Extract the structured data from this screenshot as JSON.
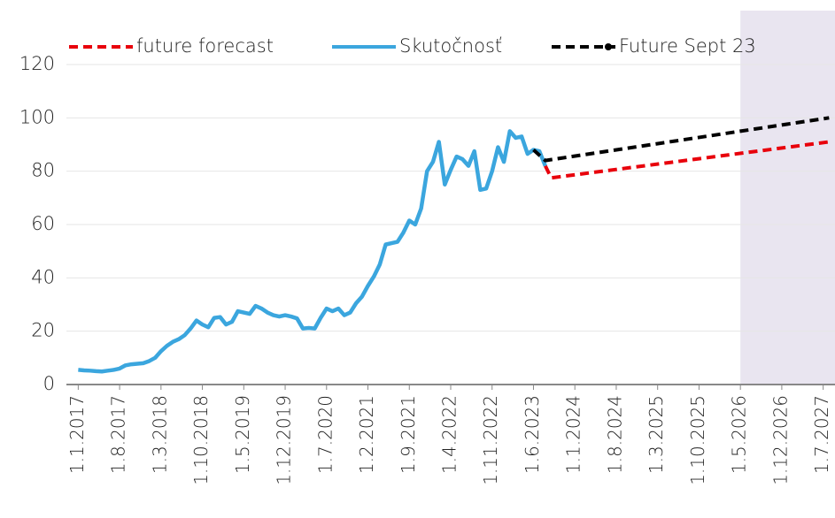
{
  "chart_data": {
    "type": "line",
    "ylim": [
      0,
      120
    ],
    "yticks": [
      0,
      20,
      40,
      60,
      80,
      100,
      120
    ],
    "grid": true,
    "xlim": [
      "2016-11-01",
      "2027-09-01"
    ],
    "xticks": [
      {
        "value": "2017-01-01",
        "label": "1.1.2017"
      },
      {
        "value": "2017-08-01",
        "label": "1.8.2017"
      },
      {
        "value": "2018-03-01",
        "label": "1.3.2018"
      },
      {
        "value": "2018-10-01",
        "label": "1.10.2018"
      },
      {
        "value": "2019-05-01",
        "label": "1.5.2019"
      },
      {
        "value": "2019-12-01",
        "label": "1.12.2019"
      },
      {
        "value": "2020-07-01",
        "label": "1.7.2020"
      },
      {
        "value": "2021-02-01",
        "label": "1.2.2021"
      },
      {
        "value": "2021-09-01",
        "label": "1.9.2021"
      },
      {
        "value": "2022-04-01",
        "label": "1.4.2022"
      },
      {
        "value": "2022-11-01",
        "label": "1.11.2022"
      },
      {
        "value": "2023-06-01",
        "label": "1.6.2023"
      },
      {
        "value": "2024-01-01",
        "label": "1.1.2024"
      },
      {
        "value": "2024-08-01",
        "label": "1.8.2024"
      },
      {
        "value": "2025-03-01",
        "label": "1.3.2025"
      },
      {
        "value": "2025-10-01",
        "label": "1.10.2025"
      },
      {
        "value": "2026-05-01",
        "label": "1.5.2026"
      },
      {
        "value": "2026-12-01",
        "label": "1.12.2026"
      },
      {
        "value": "2027-07-01",
        "label": "1.7.2027"
      }
    ],
    "shaded_range": [
      "2026-05-01",
      "2027-09-01"
    ],
    "shaded_color": "#e9e5f0",
    "legend": "top",
    "series": [
      {
        "name": "future forecast",
        "color": "#e8000b",
        "dashed": true,
        "x": [
          "2023-08-01",
          "2023-09-01",
          "2027-08-01"
        ],
        "values": [
          82,
          77.5,
          91
        ]
      },
      {
        "name": "Skutočnosť",
        "color": "#3ba6de",
        "dashed": false,
        "x": [
          "2017-01-01",
          "2017-02-01",
          "2017-03-01",
          "2017-04-01",
          "2017-05-01",
          "2017-06-01",
          "2017-07-01",
          "2017-08-01",
          "2017-09-01",
          "2017-10-01",
          "2017-11-01",
          "2017-12-01",
          "2018-01-01",
          "2018-02-01",
          "2018-03-01",
          "2018-04-01",
          "2018-05-01",
          "2018-06-01",
          "2018-07-01",
          "2018-08-01",
          "2018-09-01",
          "2018-10-01",
          "2018-11-01",
          "2018-12-01",
          "2019-01-01",
          "2019-02-01",
          "2019-03-01",
          "2019-04-01",
          "2019-05-01",
          "2019-06-01",
          "2019-07-01",
          "2019-08-01",
          "2019-09-01",
          "2019-10-01",
          "2019-11-01",
          "2019-12-01",
          "2020-01-01",
          "2020-02-01",
          "2020-03-01",
          "2020-04-01",
          "2020-05-01",
          "2020-06-01",
          "2020-07-01",
          "2020-08-01",
          "2020-09-01",
          "2020-10-01",
          "2020-11-01",
          "2020-12-01",
          "2021-01-01",
          "2021-02-01",
          "2021-03-01",
          "2021-04-01",
          "2021-05-01",
          "2021-06-01",
          "2021-07-01",
          "2021-08-01",
          "2021-09-01",
          "2021-10-01",
          "2021-11-01",
          "2021-12-01",
          "2022-01-01",
          "2022-02-01",
          "2022-03-01",
          "2022-04-01",
          "2022-05-01",
          "2022-06-01",
          "2022-07-01",
          "2022-08-01",
          "2022-09-01",
          "2022-10-01",
          "2022-11-01",
          "2022-12-01",
          "2023-01-01",
          "2023-02-01",
          "2023-03-01",
          "2023-04-01",
          "2023-05-01",
          "2023-06-01",
          "2023-07-01",
          "2023-08-01"
        ],
        "values": [
          5.5,
          5.3,
          5.2,
          5.0,
          4.9,
          5.2,
          5.5,
          6,
          7.2,
          7.6,
          7.8,
          8,
          8.8,
          10,
          12.5,
          14.5,
          16,
          17,
          18.5,
          21,
          24,
          22.5,
          21.5,
          25,
          25.3,
          22.5,
          23.5,
          27.5,
          27,
          26.5,
          29.5,
          28.5,
          27,
          26,
          25.5,
          26,
          25.5,
          24.8,
          21,
          21.2,
          21,
          25,
          28.5,
          27.5,
          28.5,
          26,
          27,
          30.5,
          33,
          37,
          40.5,
          45,
          52.5,
          53,
          53.5,
          57,
          61.5,
          60,
          66,
          80,
          83.5,
          91,
          75,
          80.5,
          85.5,
          84.5,
          82,
          87.5,
          73,
          73.5,
          80,
          89,
          83.5,
          95,
          92.5,
          93,
          86.5,
          88,
          87.5,
          82
        ]
      },
      {
        "name": "Future Sept 23",
        "color": "#000000",
        "dashed": true,
        "x": [
          "2023-06-01",
          "2023-08-01",
          "2027-08-01"
        ],
        "values": [
          88,
          84,
          100
        ]
      }
    ]
  }
}
